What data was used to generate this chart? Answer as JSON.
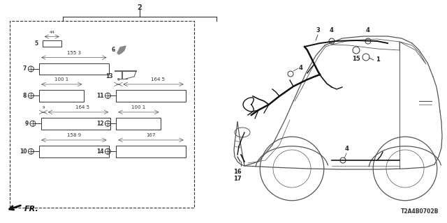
{
  "bg_color": "#ffffff",
  "diagram_code": "T2A4B0702B",
  "fig_width": 6.4,
  "fig_height": 3.2,
  "dpi": 100,
  "line_color": "#333333",
  "wire_color": "#111111",
  "parts": [
    {
      "num": "5",
      "dim": "44",
      "bx": 0.095,
      "by": 0.79,
      "bw": 0.042,
      "bh": 0.03,
      "pin_left": true,
      "tiny": true
    },
    {
      "num": "7",
      "dim": "155 3",
      "bx": 0.088,
      "by": 0.665,
      "bw": 0.155,
      "bh": 0.052,
      "pin_left": true,
      "tiny": false
    },
    {
      "num": "8",
      "dim": "100 1",
      "bx": 0.088,
      "by": 0.545,
      "bw": 0.1,
      "bh": 0.052,
      "pin_left": true,
      "tiny": false
    },
    {
      "num": "9",
      "dim": "164 5",
      "bx": 0.092,
      "by": 0.42,
      "bw": 0.155,
      "bh": 0.052,
      "pin_left": true,
      "tiny": false,
      "small_off": "9"
    },
    {
      "num": "10",
      "dim": "158 9",
      "bx": 0.088,
      "by": 0.295,
      "bw": 0.155,
      "bh": 0.052,
      "pin_left": true,
      "tiny": false
    },
    {
      "num": "11",
      "dim": "164 5",
      "bx": 0.26,
      "by": 0.545,
      "bw": 0.155,
      "bh": 0.052,
      "pin_left": true,
      "tiny": false,
      "small_off": "9"
    },
    {
      "num": "12",
      "dim": "100 1",
      "bx": 0.26,
      "by": 0.42,
      "bw": 0.1,
      "bh": 0.052,
      "pin_left": true,
      "tiny": false
    },
    {
      "num": "14",
      "dim": "167",
      "bx": 0.26,
      "by": 0.295,
      "bw": 0.155,
      "bh": 0.052,
      "pin_left": true,
      "tiny": false
    }
  ]
}
